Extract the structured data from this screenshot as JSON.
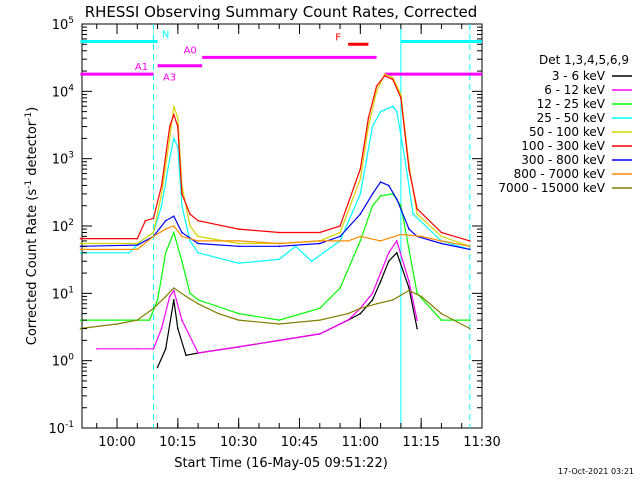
{
  "chart_data": {
    "type": "line",
    "title": "RHESSI Observing Summary Count Rates, Corrected",
    "xlabel": "Start Time (16-May-05 09:51:22)",
    "ylabel": "Corrected Count Rate (s",
    "ylabel_exp": "-1",
    "ylabel_mid": " detector",
    "ylabel_exp2": "-1",
    "ylabel_end": ")",
    "y_scale": "log",
    "ylim": [
      0.1,
      100000
    ],
    "xlim": [
      "09:51:22",
      "11:30:00"
    ],
    "x_ticks": [
      "10:00",
      "10:15",
      "10:30",
      "10:45",
      "11:00",
      "11:15",
      "11:30"
    ],
    "y_ticks": [
      "10^-1",
      "10^0",
      "10^1",
      "10^2",
      "10^3",
      "10^4",
      "10^5"
    ],
    "footer": "17-Oct-2021 03:21",
    "legend": {
      "title": "Det 1,3,4,5,6,9",
      "placement": "right",
      "entries": [
        {
          "label": "3 - 6 keV",
          "color": "#000000"
        },
        {
          "label": "6 - 12 keV",
          "color": "#ff00ff"
        },
        {
          "label": "12 - 25 keV",
          "color": "#00ff00"
        },
        {
          "label": "25 - 50 keV",
          "color": "#00ffff"
        },
        {
          "label": "50 - 100 keV",
          "color": "#d4d400"
        },
        {
          "label": "100 - 300 keV",
          "color": "#ff0000"
        },
        {
          "label": "300 - 800 keV",
          "color": "#0000ff"
        },
        {
          "label": "800 - 7000 keV",
          "color": "#ff8c00"
        },
        {
          "label": "7000 - 15000 keV",
          "color": "#808000"
        }
      ]
    },
    "flags": [
      {
        "label": "N",
        "color": "#00ffff",
        "level": 55000,
        "segments": [
          [
            "09:51",
            "10:10"
          ],
          [
            "11:10",
            "11:30"
          ]
        ]
      },
      {
        "label": "A1",
        "color": "#ff00ff",
        "level": 18000,
        "segments": [
          [
            "09:51",
            "10:09"
          ]
        ]
      },
      {
        "label": "A3",
        "color": "#ff00ff",
        "level": 24000,
        "segments": [
          [
            "10:10",
            "10:21"
          ]
        ]
      },
      {
        "label": "A0",
        "color": "#ff00ff",
        "level": 32000,
        "segments": [
          [
            "10:21",
            "11:04"
          ]
        ]
      },
      {
        "label": "F",
        "color": "#ff0000",
        "level": 50000,
        "segments": [
          [
            "10:57",
            "11:02"
          ]
        ]
      },
      {
        "label": "",
        "color": "#ff00ff",
        "level": 18000,
        "segments": [
          [
            "11:06",
            "11:30"
          ]
        ]
      }
    ],
    "vlines": [
      {
        "time": "10:09",
        "style": "dashed",
        "color": "#00ffff"
      },
      {
        "time": "11:10",
        "style": "solid",
        "color": "#00ffff"
      },
      {
        "time": "11:27",
        "style": "dashed",
        "color": "#00ffff"
      }
    ],
    "series": [
      {
        "name": "3 - 6 keV",
        "color": "#000000",
        "x": [
          "10:10",
          "10:12",
          "10:14",
          "10:15",
          "10:17",
          "10:20",
          "10:30",
          "10:40",
          "10:50",
          "10:57",
          "11:00",
          "11:03",
          "11:05",
          "11:07",
          "11:09",
          "11:12",
          "11:14"
        ],
        "y": [
          0.8,
          1.5,
          8,
          3,
          1.2,
          1.3,
          1.6,
          2,
          2.5,
          4,
          5,
          8,
          15,
          30,
          40,
          12,
          3
        ]
      },
      {
        "name": "6 - 12 keV",
        "color": "#ff00ff",
        "x": [
          "09:55",
          "10:05",
          "10:09",
          "10:11",
          "10:13",
          "10:14",
          "10:16",
          "10:20",
          "10:30",
          "10:40",
          "10:50",
          "10:57",
          "11:00",
          "11:03",
          "11:05",
          "11:07",
          "11:09",
          "11:12",
          "11:14"
        ],
        "y": [
          1.5,
          1.5,
          1.5,
          3,
          9,
          11,
          4,
          1.3,
          1.6,
          2,
          2.5,
          4,
          6,
          10,
          20,
          40,
          60,
          15,
          4
        ]
      },
      {
        "name": "12 - 25 keV",
        "color": "#00ff00",
        "x": [
          "09:51",
          "10:00",
          "10:08",
          "10:10",
          "10:12",
          "10:14",
          "10:16",
          "10:18",
          "10:20",
          "10:30",
          "10:40",
          "10:50",
          "10:55",
          "11:00",
          "11:03",
          "11:05",
          "11:08",
          "11:10",
          "11:14",
          "11:20",
          "11:27"
        ],
        "y": [
          4,
          4,
          4,
          8,
          40,
          80,
          30,
          10,
          8,
          5,
          4,
          6,
          12,
          60,
          200,
          280,
          300,
          200,
          10,
          4,
          4
        ]
      },
      {
        "name": "25 - 50 keV",
        "color": "#00ffff",
        "x": [
          "09:51",
          "10:03",
          "10:06",
          "10:09",
          "10:11",
          "10:13",
          "10:14",
          "10:15",
          "10:16",
          "10:18",
          "10:20",
          "10:30",
          "10:40",
          "10:44",
          "10:48",
          "10:55",
          "11:00",
          "11:03",
          "11:05",
          "11:08",
          "11:09",
          "11:11",
          "11:13",
          "11:20",
          "11:27"
        ],
        "y": [
          40,
          40,
          60,
          80,
          200,
          1000,
          2000,
          1500,
          200,
          60,
          40,
          28,
          32,
          50,
          30,
          60,
          300,
          3000,
          5000,
          6000,
          5000,
          1000,
          150,
          60,
          45
        ]
      },
      {
        "name": "50 - 100 keV",
        "color": "#d4d400",
        "x": [
          "09:51",
          "10:05",
          "10:09",
          "10:11",
          "10:13",
          "10:14",
          "10:15",
          "10:16",
          "10:18",
          "10:20",
          "10:30",
          "10:40",
          "10:50",
          "10:55",
          "11:00",
          "11:02",
          "11:04",
          "11:06",
          "11:08",
          "11:10",
          "11:12",
          "11:14",
          "11:20",
          "11:27"
        ],
        "y": [
          55,
          55,
          80,
          300,
          2000,
          6000,
          4000,
          400,
          100,
          70,
          55,
          55,
          60,
          80,
          500,
          3000,
          10000,
          18000,
          16000,
          9000,
          800,
          150,
          70,
          50
        ]
      },
      {
        "name": "100 - 300 keV",
        "color": "#ff0000",
        "x": [
          "09:51",
          "10:05",
          "10:07",
          "10:09",
          "10:11",
          "10:13",
          "10:14",
          "10:15",
          "10:16",
          "10:18",
          "10:20",
          "10:30",
          "10:40",
          "10:50",
          "10:55",
          "11:00",
          "11:02",
          "11:04",
          "11:06",
          "11:08",
          "11:10",
          "11:12",
          "11:14",
          "11:20",
          "11:27"
        ],
        "y": [
          65,
          65,
          120,
          130,
          400,
          3000,
          4500,
          3000,
          300,
          150,
          120,
          90,
          80,
          80,
          100,
          700,
          4000,
          12000,
          17000,
          15000,
          8000,
          700,
          180,
          80,
          60
        ]
      },
      {
        "name": "300 - 800 keV",
        "color": "#0000ff",
        "x": [
          "09:51",
          "10:05",
          "10:09",
          "10:12",
          "10:14",
          "10:16",
          "10:20",
          "10:30",
          "10:40",
          "10:50",
          "10:55",
          "11:00",
          "11:03",
          "11:05",
          "11:07",
          "11:09",
          "11:12",
          "11:14",
          "11:20",
          "11:27"
        ],
        "y": [
          50,
          52,
          70,
          120,
          140,
          80,
          55,
          50,
          50,
          55,
          70,
          150,
          300,
          450,
          400,
          250,
          90,
          70,
          55,
          45
        ]
      },
      {
        "name": "800 - 7000 keV",
        "color": "#ff8c00",
        "x": [
          "09:51",
          "10:05",
          "10:09",
          "10:12",
          "10:14",
          "10:16",
          "10:20",
          "10:30",
          "10:40",
          "10:50",
          "10:57",
          "11:00",
          "11:05",
          "11:10",
          "11:15",
          "11:20",
          "11:27"
        ],
        "y": [
          45,
          45,
          70,
          90,
          100,
          70,
          60,
          60,
          55,
          60,
          60,
          70,
          60,
          75,
          70,
          60,
          50
        ]
      },
      {
        "name": "7000 - 15000 keV",
        "color": "#808000",
        "x": [
          "09:51",
          "10:00",
          "10:05",
          "10:09",
          "10:12",
          "10:14",
          "10:17",
          "10:20",
          "10:25",
          "10:30",
          "10:40",
          "10:50",
          "10:57",
          "11:00",
          "11:04",
          "11:08",
          "11:12",
          "11:15",
          "11:20",
          "11:27"
        ],
        "y": [
          3,
          3.5,
          4,
          6,
          9,
          12,
          9,
          7,
          5,
          4,
          3.5,
          4,
          5,
          6,
          7,
          8,
          11,
          9,
          5,
          3
        ]
      }
    ]
  }
}
